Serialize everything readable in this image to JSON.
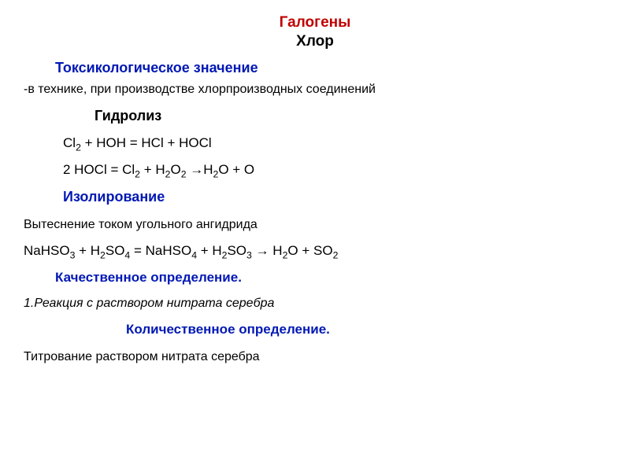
{
  "colors": {
    "accent_red": "#c00000",
    "accent_blue": "#0018b4",
    "text": "#000000",
    "background": "#ffffff"
  },
  "typography": {
    "base_font": "Arial",
    "title_size_pt": 19,
    "section_size_pt": 18,
    "body_size_pt": 16
  },
  "title": {
    "main": "Галогены",
    "sub": "Хлор"
  },
  "sections": {
    "tox": "Токсикологическое значение",
    "tox_body": "-в технике, при производстве хлорпроизводных соединений",
    "hydro": "Гидролиз",
    "isol": "Изолирование",
    "isol_body": "Вытеснение током угольного ангидрида",
    "qual": "Качественное определение.",
    "qual_body": "1.Реакция с раствором нитрата серебра",
    "quant": "Количественное определение.",
    "quant_body": "Титрование раствором нитрата серебра"
  },
  "equations": {
    "eq1_html": "Cl<sub>2</sub> + HOH = HCl + HOCl",
    "eq2_html": "2 HOCl = Cl<sub>2</sub> + H<sub>2</sub>O<sub>2</sub> &#8594;H<sub>2</sub>O + O",
    "eq3_html": "NaHSO<sub>3</sub> + H<sub>2</sub>SO<sub>4</sub> = NaHSO<sub>4</sub> + H<sub>2</sub>SO<sub>3</sub> &#8594; H<sub>2</sub>O + SO<sub>2</sub>"
  }
}
